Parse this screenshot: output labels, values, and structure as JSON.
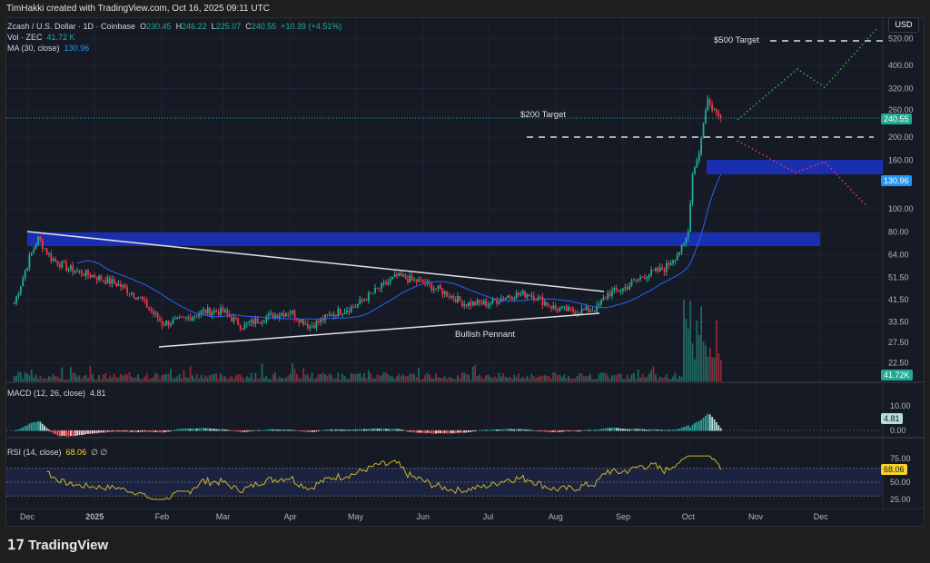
{
  "title": "TimHakki created with TradingView.com, Oct 16, 2025 09:11 UTC",
  "legend": {
    "symbol": "Zcash / U.S. Dollar · 1D · Coinbase",
    "o_label": "O",
    "o": "230.45",
    "h_label": "H",
    "h": "246.22",
    "l_label": "L",
    "l": "225.07",
    "c_label": "C",
    "c": "240.55",
    "change": "+10.39 (+4.51%)",
    "vol_label": "Vol · ZEC",
    "vol": "41.72 K",
    "ma_label": "MA (30, close)",
    "ma": "130.96",
    "macd_label": "MACD (12, 26, close)",
    "macd": "4.81",
    "rsi_label": "RSI (14, close)",
    "rsi": "68.06",
    "rsi_extra": "∅ ∅"
  },
  "currency": "USD",
  "tags": {
    "last_price": "240.55",
    "ma": "130.96",
    "volume": "41.72K",
    "macd": "4.81",
    "rsi": "68.06"
  },
  "annotations": {
    "target_200": "$200 Target",
    "target_500": "$500 Target",
    "pattern": "Bullish Pennant"
  },
  "logo": "TradingView",
  "colors": {
    "up": "#22ab94",
    "down": "#f23645",
    "ma": "#2962ff",
    "zone": "#1a2fb0",
    "rsi": "#c9b52a",
    "last": "#22ab94"
  },
  "chart_data": [
    {
      "type": "candlestick",
      "title": "Zcash / U.S. Dollar · 1D · Coinbase",
      "scale": "log",
      "y_ticks": [
        "520.00",
        "400.00",
        "320.00",
        "260.00",
        "200.00",
        "160.00",
        "100.00",
        "80.00",
        "64.00",
        "51.50",
        "41.50",
        "33.50",
        "27.50",
        "22.50"
      ],
      "x_ticks": [
        "Dec",
        "2025",
        "Feb",
        "Mar",
        "Apr",
        "May",
        "Jun",
        "Jul",
        "Aug",
        "Sep",
        "Oct",
        "Nov",
        "Dec"
      ],
      "close_approx": [
        [
          "2024-11-25",
          40
        ],
        [
          "2024-12-02",
          62
        ],
        [
          "2024-12-06",
          75
        ],
        [
          "2024-12-12",
          62
        ],
        [
          "2024-12-20",
          56
        ],
        [
          "2025-01-01",
          52
        ],
        [
          "2025-01-12",
          48
        ],
        [
          "2025-01-22",
          42
        ],
        [
          "2025-02-01",
          33
        ],
        [
          "2025-02-10",
          34
        ],
        [
          "2025-02-20",
          37
        ],
        [
          "2025-03-01",
          37
        ],
        [
          "2025-03-10",
          32
        ],
        [
          "2025-03-20",
          35
        ],
        [
          "2025-04-01",
          37
        ],
        [
          "2025-04-10",
          32
        ],
        [
          "2025-04-20",
          36
        ],
        [
          "2025-05-01",
          39
        ],
        [
          "2025-05-10",
          45
        ],
        [
          "2025-05-20",
          52
        ],
        [
          "2025-06-01",
          49
        ],
        [
          "2025-06-10",
          45
        ],
        [
          "2025-06-20",
          40
        ],
        [
          "2025-07-01",
          40
        ],
        [
          "2025-07-10",
          43
        ],
        [
          "2025-07-20",
          44
        ],
        [
          "2025-08-01",
          38
        ],
        [
          "2025-08-10",
          37
        ],
        [
          "2025-08-20",
          38
        ],
        [
          "2025-08-25",
          44
        ],
        [
          "2025-09-01",
          46
        ],
        [
          "2025-09-10",
          52
        ],
        [
          "2025-09-20",
          56
        ],
        [
          "2025-09-28",
          68
        ],
        [
          "2025-10-01",
          80
        ],
        [
          "2025-10-03",
          140
        ],
        [
          "2025-10-06",
          170
        ],
        [
          "2025-10-08",
          230
        ],
        [
          "2025-10-10",
          290
        ],
        [
          "2025-10-12",
          260
        ],
        [
          "2025-10-16",
          240.55
        ]
      ],
      "ma_period": 30
    },
    {
      "type": "bar",
      "title": "MACD (12, 26, close)",
      "y_ticks": [
        "10.00",
        "0.00"
      ],
      "last": 4.81
    },
    {
      "type": "line",
      "title": "RSI (14, close)",
      "y_ticks": [
        "75.00",
        "50.00",
        "25.00"
      ],
      "ylim": [
        20,
        90
      ],
      "last": 68.06
    }
  ]
}
